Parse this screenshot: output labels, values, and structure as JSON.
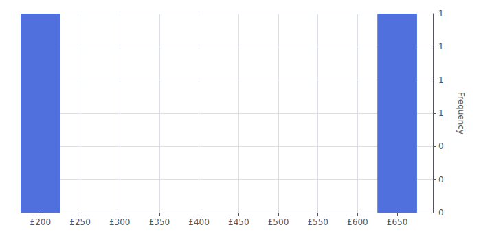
{
  "chart_data": {
    "type": "histogram",
    "ylabel": "Frequency",
    "bins": [
      175,
      225,
      275,
      325,
      375,
      425,
      475,
      525,
      575,
      625,
      675
    ],
    "values": [
      1,
      0,
      0,
      0,
      0,
      0,
      0,
      0,
      0,
      1
    ],
    "xlim": [
      175,
      695
    ],
    "ylim": [
      0,
      1.0
    ],
    "xticks": [
      {
        "value": 200,
        "label": "£200"
      },
      {
        "value": 250,
        "label": "£250"
      },
      {
        "value": 300,
        "label": "£300"
      },
      {
        "value": 350,
        "label": "£350"
      },
      {
        "value": 400,
        "label": "£400"
      },
      {
        "value": 450,
        "label": "£450"
      },
      {
        "value": 500,
        "label": "£500"
      },
      {
        "value": 550,
        "label": "£550"
      },
      {
        "value": 600,
        "label": "£600"
      },
      {
        "value": 650,
        "label": "£650"
      }
    ],
    "yticks": [
      0,
      {
        "value": 0.1667,
        "label": "0"
      },
      {
        "value": 0.3333,
        "label": "0"
      },
      {
        "value": 0.5,
        "label": "1"
      },
      {
        "value": 0.6667,
        "label": "1"
      },
      {
        "value": 0.8333,
        "label": "1"
      },
      1
    ],
    "grid": true
  }
}
